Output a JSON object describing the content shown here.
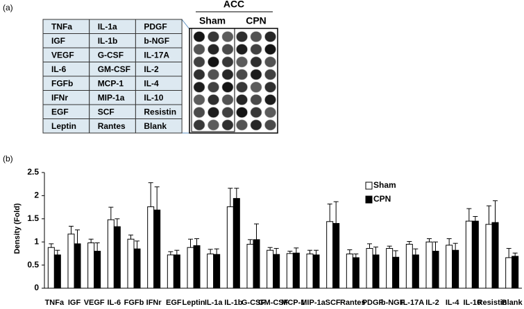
{
  "panel_labels": [
    "(a)",
    "(b)"
  ],
  "table": {
    "rows": [
      [
        "TNFa",
        "IL-1a",
        "PDGF"
      ],
      [
        "IGF",
        "IL-1b",
        "b-NGF"
      ],
      [
        "VEGF",
        "G-CSF",
        "IL-17A"
      ],
      [
        "IL-6",
        "GM-CSF",
        "IL-2"
      ],
      [
        "FGFb",
        "MCP-1",
        "IL-4"
      ],
      [
        "IFNr",
        "MIP-1a",
        "IL-10"
      ],
      [
        "EGF",
        "SCF",
        "Resistin"
      ],
      [
        "Leptin",
        "Rantes",
        "Blank"
      ]
    ]
  },
  "blot": {
    "title": "ACC",
    "groups": [
      "Sham",
      "CPN"
    ]
  },
  "chart_data": {
    "type": "bar",
    "y_label": "Density (Fold)",
    "categories": [
      "TNFa",
      "IGF",
      "VEGF",
      "IL-6",
      "FGFb",
      "IFNr",
      "EGF",
      "Leptin",
      "IL-1a",
      "IL-1b",
      "G-CSF",
      "GM-CSF",
      "MCP-1",
      "MIP-1a",
      "SCF",
      "Rantes",
      "PDGF",
      "b-NGF",
      "IL-17A",
      "IL-2",
      "IL-4",
      "IL-10",
      "Resistin",
      "Blank"
    ],
    "series": [
      {
        "name": "Sham",
        "color": "#ffffff",
        "values": [
          0.88,
          1.17,
          0.98,
          1.48,
          1.06,
          1.76,
          0.72,
          0.88,
          0.74,
          1.76,
          0.95,
          0.82,
          0.75,
          0.74,
          1.44,
          0.74,
          0.86,
          0.86,
          0.95,
          1.0,
          0.93,
          1.45,
          1.38,
          0.66
        ],
        "errors": [
          0.08,
          0.17,
          0.08,
          0.27,
          0.09,
          0.52,
          0.07,
          0.18,
          0.1,
          0.4,
          0.1,
          0.06,
          0.05,
          0.08,
          0.38,
          0.09,
          0.1,
          0.05,
          0.06,
          0.07,
          0.14,
          0.27,
          0.4,
          0.2
        ]
      },
      {
        "name": "CPN",
        "color": "#000000",
        "values": [
          0.72,
          0.96,
          0.8,
          1.33,
          0.85,
          1.69,
          0.72,
          0.92,
          0.73,
          1.94,
          1.05,
          0.73,
          0.76,
          0.72,
          1.4,
          0.66,
          0.72,
          0.67,
          0.72,
          0.8,
          0.82,
          1.45,
          1.42,
          0.69
        ],
        "errors": [
          0.1,
          0.3,
          0.18,
          0.17,
          0.17,
          0.5,
          0.1,
          0.15,
          0.12,
          0.22,
          0.34,
          0.13,
          0.11,
          0.1,
          0.47,
          0.08,
          0.17,
          0.14,
          0.13,
          0.2,
          0.15,
          0.1,
          0.47,
          0.07
        ]
      }
    ],
    "ylim": [
      0,
      2.5
    ],
    "yticks": [
      0,
      0.5,
      1,
      1.5,
      2,
      2.5
    ],
    "legend": "upper right"
  }
}
